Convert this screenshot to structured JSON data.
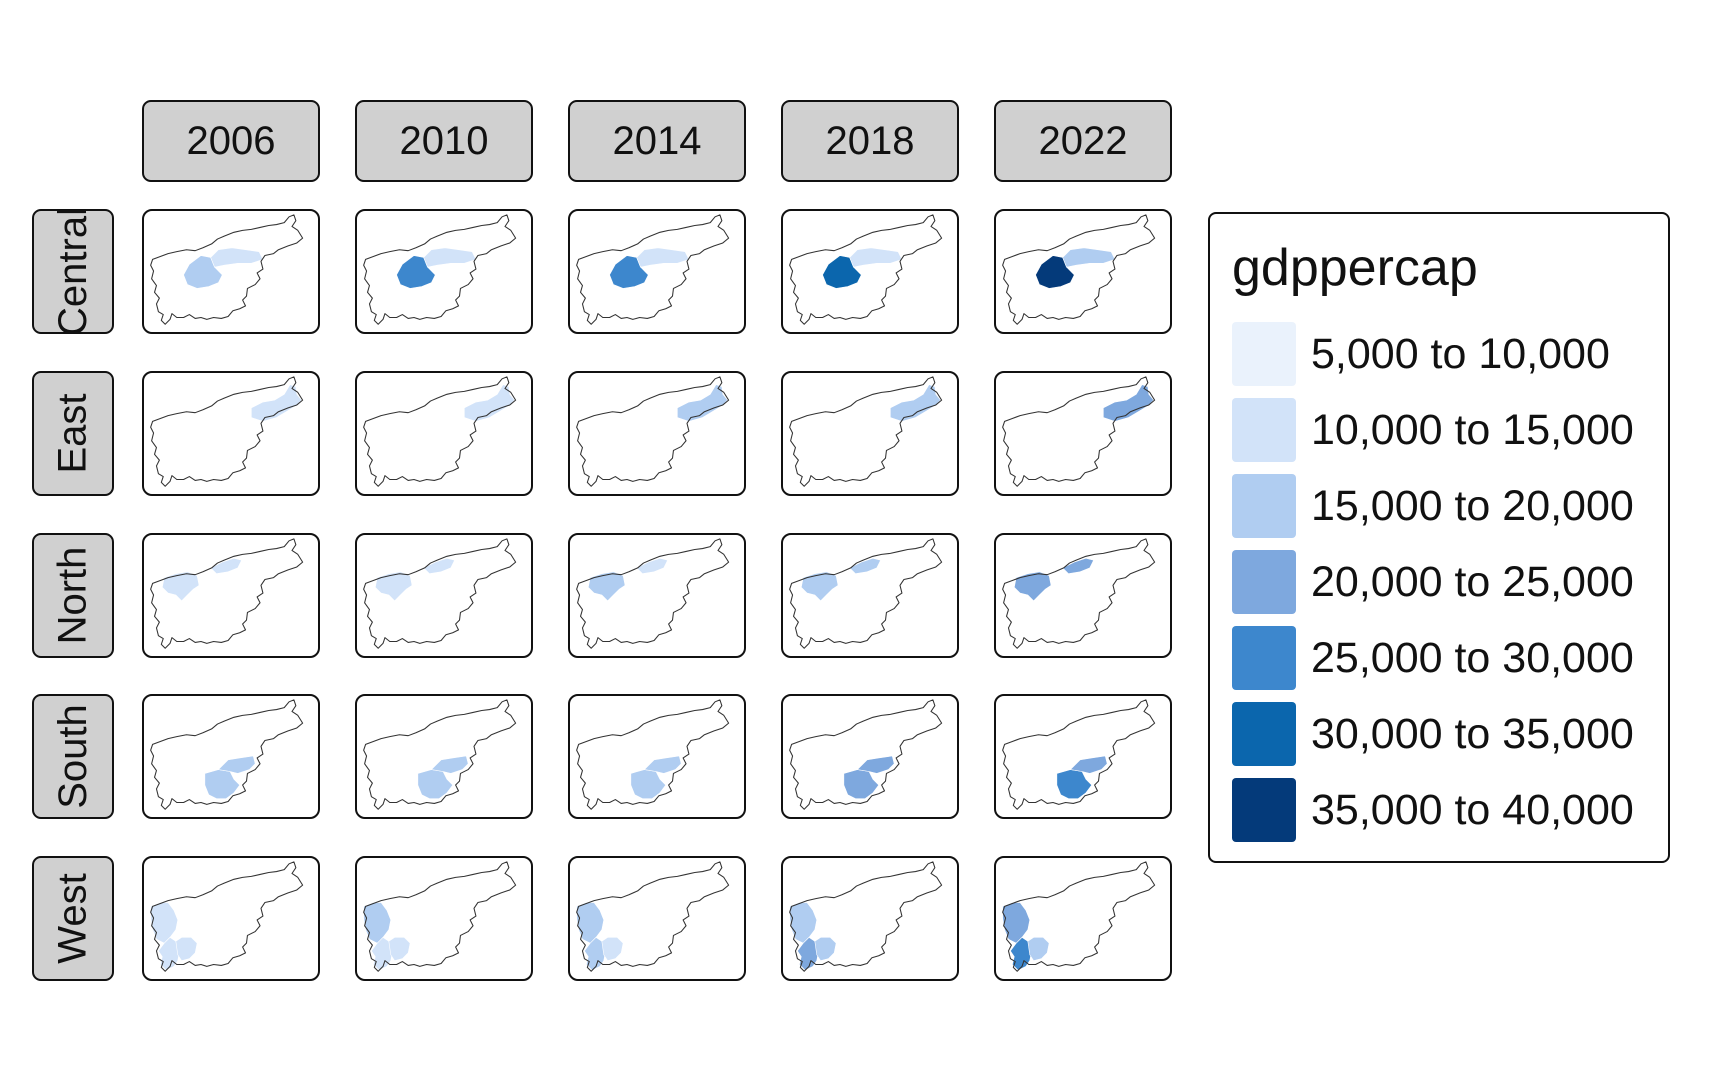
{
  "facets": {
    "years": [
      "2006",
      "2010",
      "2014",
      "2018",
      "2022"
    ],
    "regions": [
      "Central",
      "East",
      "North",
      "South",
      "West"
    ]
  },
  "legend": {
    "title": "gdppercap",
    "items": [
      {
        "label": "5,000 to 10,000",
        "color": "#eaf2fc"
      },
      {
        "label": "10,000 to 15,000",
        "color": "#d2e3f9"
      },
      {
        "label": "15,000 to 20,000",
        "color": "#b0cdf1"
      },
      {
        "label": "20,000 to 25,000",
        "color": "#7ea8de"
      },
      {
        "label": "25,000 to 30,000",
        "color": "#3d87cd"
      },
      {
        "label": "30,000 to 35,000",
        "color": "#0b66ad"
      },
      {
        "label": "35,000 to 40,000",
        "color": "#043a7a"
      }
    ]
  },
  "map_data": {
    "Central": [
      [
        2,
        1
      ],
      [
        4,
        1
      ],
      [
        4,
        1
      ],
      [
        5,
        1
      ],
      [
        6,
        2
      ]
    ],
    "East": [
      [
        1,
        1
      ],
      [
        1,
        1
      ],
      [
        2,
        2
      ],
      [
        2,
        1
      ],
      [
        3,
        3
      ]
    ],
    "North": [
      [
        1,
        1
      ],
      [
        1,
        1
      ],
      [
        2,
        1
      ],
      [
        2,
        2
      ],
      [
        3,
        3
      ]
    ],
    "South": [
      [
        2,
        2
      ],
      [
        2,
        2
      ],
      [
        2,
        2
      ],
      [
        3,
        3
      ],
      [
        4,
        3
      ]
    ],
    "West": [
      [
        1,
        1,
        1
      ],
      [
        2,
        1,
        1
      ],
      [
        2,
        2,
        1
      ],
      [
        2,
        3,
        2
      ],
      [
        3,
        4,
        2
      ]
    ]
  }
}
